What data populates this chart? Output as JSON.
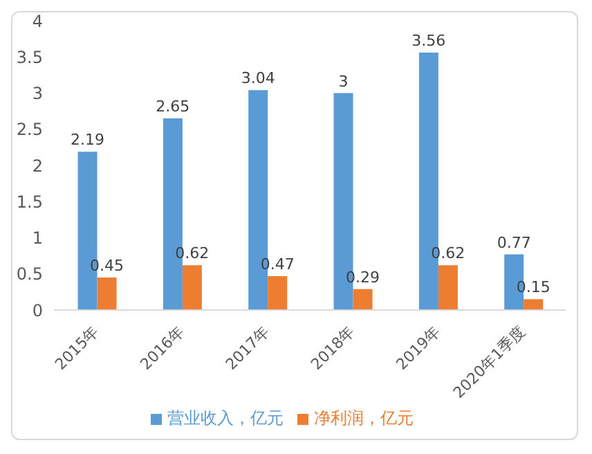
{
  "chart_data": {
    "type": "bar",
    "categories": [
      "2015年",
      "2016年",
      "2017年",
      "2018年",
      "2019年",
      "2020年1季度"
    ],
    "series": [
      {
        "name": "营业收入，亿元",
        "color": "#5b9bd5",
        "values": [
          2.19,
          2.65,
          3.04,
          3,
          3.56,
          0.77
        ]
      },
      {
        "name": "净利润，亿元",
        "color": "#ed7d31",
        "values": [
          0.45,
          0.62,
          0.47,
          0.29,
          0.62,
          0.15
        ]
      }
    ],
    "ylim": [
      0,
      4
    ],
    "yticks": [
      0,
      0.5,
      1,
      1.5,
      2,
      2.5,
      3,
      3.5,
      4
    ],
    "grid": false,
    "legend": "bottom",
    "data_labels": true
  }
}
